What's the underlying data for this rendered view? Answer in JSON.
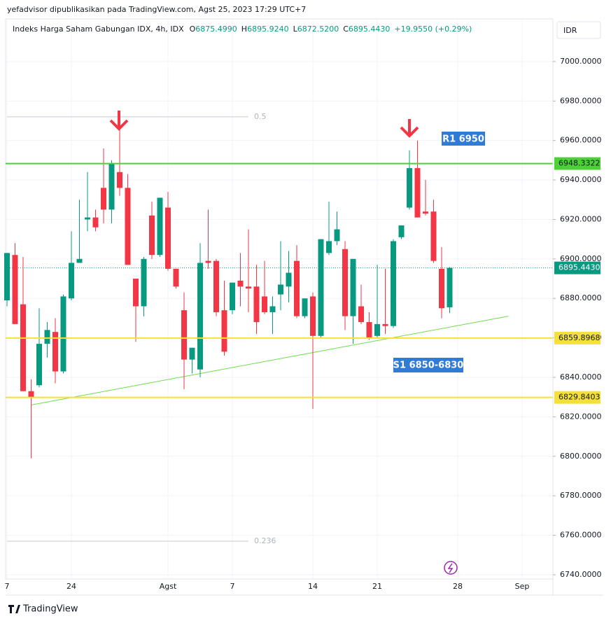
{
  "header": {
    "publisher": "yefadvisor dipublikasikan pada TradingView.com, Agst 25, 2023 17:29 UTC+7"
  },
  "legend": {
    "symbol": "Indeks Harga Saham Gabungan IDX, 4h, IDX",
    "items": [
      {
        "key": "O",
        "value": "6875.4990"
      },
      {
        "key": "H",
        "value": "6895.9240"
      },
      {
        "key": "L",
        "value": "6872.5200"
      },
      {
        "key": "C",
        "value": "6895.4430"
      }
    ],
    "change": "+19.9550 (+0.29%)"
  },
  "currency": "IDR",
  "footer": "TradingView",
  "chart_data": {
    "type": "candlestick",
    "categories": [
      "7",
      null,
      null,
      null,
      null,
      null,
      null,
      null,
      "24",
      null,
      null,
      null,
      null,
      null,
      null,
      null,
      null,
      null,
      null,
      null,
      "Agst",
      null,
      null,
      null,
      null,
      null,
      null,
      null,
      "7",
      null,
      null,
      null,
      null,
      null,
      null,
      null,
      null,
      null,
      "14",
      null,
      null,
      null,
      null,
      null,
      null,
      null,
      "21",
      null,
      null,
      null,
      null,
      null,
      null,
      null,
      null,
      null,
      "28",
      null,
      null,
      null,
      null,
      null,
      null,
      null,
      "Sep",
      null,
      null,
      null
    ],
    "open": [
      6879,
      6902,
      6877,
      6833,
      6836,
      6857,
      6863,
      6843,
      6880,
      6898,
      6920,
      6921,
      6936,
      6925,
      6944,
      6936,
      6890,
      6876,
      6922,
      6902,
      6926,
      6895,
      6874,
      6849,
      6844,
      6899,
      6899,
      6874,
      6874,
      6889,
      6886,
      6886,
      6881,
      6873,
      6882,
      6886,
      6899,
      6871,
      6881,
      6861,
      6903,
      6909,
      6905,
      6871,
      6876,
      6868,
      6861,
      6867,
      6866,
      6911,
      6926,
      6946,
      6924,
      6924,
      6895,
      6875.499,
      null,
      null,
      null,
      null,
      null,
      null,
      null,
      null,
      null,
      null,
      null,
      null
    ],
    "high": [
      6903,
      6908,
      6901,
      6839,
      6875,
      6868,
      6870,
      6882,
      6914,
      6930,
      6944,
      6925,
      6956,
      6950,
      6974,
      6943,
      6890,
      6901,
      6929,
      6931,
      6934,
      6895,
      6883,
      6855,
      6908,
      6925,
      6900,
      6889,
      6888,
      6903,
      6915,
      6897,
      6899,
      6881,
      6909,
      6904,
      6907,
      6880,
      6883,
      6910,
      6929,
      6924,
      6909,
      6900,
      6887,
      6873,
      6897,
      6895,
      6910,
      6917,
      6955,
      6960,
      6940,
      6930,
      6906,
      6895.924,
      null,
      null,
      null,
      null,
      null,
      null,
      null,
      null,
      null,
      null,
      null,
      null
    ],
    "low": [
      6876,
      6867,
      6833,
      6799,
      6835,
      6850,
      6837,
      6842,
      6879,
      6898,
      6914,
      6914,
      6918,
      6918,
      6932,
      6897,
      6858,
      6871,
      6900,
      6901,
      6894,
      6885,
      6834,
      6842,
      6840,
      6895,
      6871,
      6851,
      6872,
      6876,
      6873,
      6862,
      6872,
      6862,
      6874,
      6878,
      6870,
      6870,
      6824,
      6860,
      6902,
      6907,
      6864,
      6857,
      6867,
      6859,
      6860,
      6862,
      6865,
      6910,
      6925,
      6921,
      6922,
      6898,
      6870,
      6872.52,
      null,
      null,
      null,
      null,
      null,
      null,
      null,
      null,
      null,
      null,
      null,
      null
    ],
    "close": [
      6903,
      6867,
      6833,
      6830,
      6857,
      6864,
      6843,
      6881,
      6898,
      6900,
      6921,
      6916,
      6925,
      6948,
      6936,
      6897,
      6876,
      6900,
      6902,
      6931,
      6895,
      6886,
      6849,
      6855,
      6898,
      6898,
      6873,
      6853,
      6888,
      6886,
      6885,
      6868,
      6873,
      6876,
      6887,
      6893,
      6871,
      6880,
      6861,
      6910,
      6909,
      6915,
      6871,
      6900,
      6868,
      6860,
      6867,
      6866,
      6909,
      6917,
      6946,
      6921,
      6923,
      6899,
      6875,
      6895.443,
      null,
      null,
      null,
      null,
      null,
      null,
      null,
      null,
      null,
      null,
      null,
      null
    ],
    "up_color": "#089981",
    "down_color": "#f23645",
    "ylim": [
      6738.2,
      7021.6
    ],
    "yticks": [
      {
        "value": 7000,
        "label": "7000.0000"
      },
      {
        "value": 6980,
        "label": "6980.0000"
      },
      {
        "value": 6960,
        "label": "6960.0000"
      },
      {
        "value": 6940,
        "label": "6940.0000"
      },
      {
        "value": 6920,
        "label": "6920.0000"
      },
      {
        "value": 6900,
        "label": "6900.0000"
      },
      {
        "value": 6880,
        "label": "6880.0000"
      },
      {
        "value": 6860,
        "label": "6860.0000"
      },
      {
        "value": 6840,
        "label": "6840.0000"
      },
      {
        "value": 6820,
        "label": "6820.0000"
      },
      {
        "value": 6800,
        "label": "6800.0000"
      },
      {
        "value": 6780,
        "label": "6780.0000"
      },
      {
        "value": 6760,
        "label": "6760.0000"
      },
      {
        "value": 6740,
        "label": "6740.0000"
      }
    ],
    "grid": true,
    "levels": [
      {
        "value": 6948.3322,
        "label": "6948.3322",
        "color": "#4cd137"
      },
      {
        "value": 6859.8968,
        "label": "6859.8968",
        "color": "#f5e03a"
      },
      {
        "value": 6829.8403,
        "label": "6829.8403",
        "color": "#f5e03a"
      }
    ],
    "last_price": {
      "value": 6895.443,
      "label": "6895.4430",
      "color": "#089981"
    },
    "fib": [
      {
        "value": 6972,
        "label": "0.5"
      },
      {
        "value": 6757,
        "label": "0.236"
      }
    ],
    "trendline": {
      "from": [
        3,
        6826
      ],
      "to": [
        62.3,
        6871
      ],
      "color": "#6fdc4e"
    },
    "annotations": [
      {
        "text": "R1 6950"
      },
      {
        "text": "S1 6850-6830"
      }
    ]
  }
}
